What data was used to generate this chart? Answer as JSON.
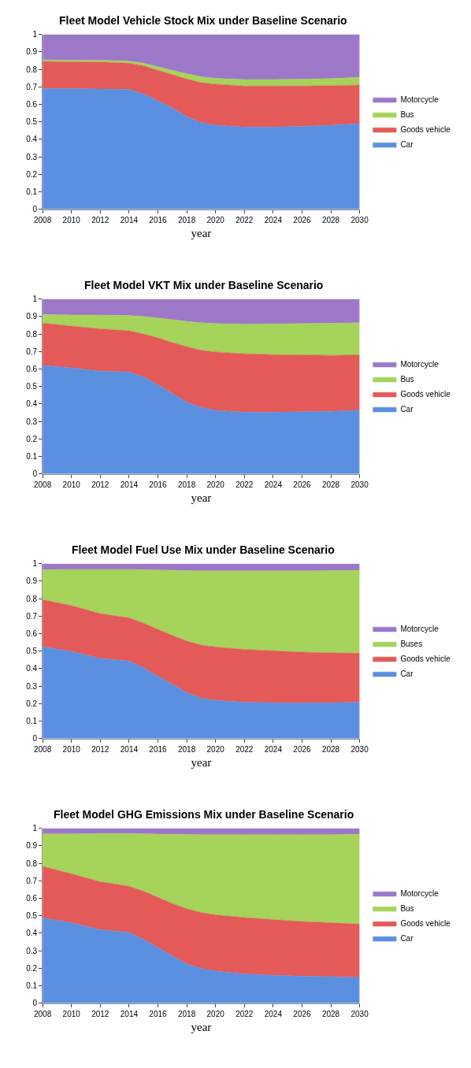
{
  "chart_data": [
    {
      "type": "area",
      "stacked": true,
      "title": "Fleet Model Vehicle Stock Mix under Baseline Scenario",
      "xlabel": "year",
      "x": [
        2008,
        2010,
        2012,
        2014,
        2015,
        2016,
        2017,
        2018,
        2019,
        2020,
        2022,
        2024,
        2026,
        2028,
        2030
      ],
      "xlim": [
        2008,
        2030
      ],
      "xticks": [
        2008,
        2010,
        2012,
        2014,
        2016,
        2018,
        2020,
        2022,
        2024,
        2026,
        2028,
        2030
      ],
      "ylim": [
        0,
        1
      ],
      "yticks": [
        0,
        0.1,
        0.2,
        0.3,
        0.4,
        0.5,
        0.6,
        0.7,
        0.8,
        0.9,
        1
      ],
      "legend": "right",
      "series": [
        {
          "name": "Car",
          "color": "#5b8fe0",
          "values": [
            0.69,
            0.69,
            0.688,
            0.685,
            0.66,
            0.62,
            0.58,
            0.53,
            0.495,
            0.48,
            0.47,
            0.47,
            0.474,
            0.48,
            0.49
          ]
        },
        {
          "name": "Goods vehicle",
          "color": "#e35a58",
          "values": [
            0.155,
            0.153,
            0.154,
            0.15,
            0.16,
            0.175,
            0.19,
            0.215,
            0.23,
            0.235,
            0.235,
            0.235,
            0.231,
            0.227,
            0.22
          ]
        },
        {
          "name": "Bus",
          "color": "#a6d35a",
          "values": [
            0.01,
            0.009,
            0.01,
            0.013,
            0.015,
            0.02,
            0.025,
            0.03,
            0.033,
            0.033,
            0.037,
            0.037,
            0.039,
            0.04,
            0.045
          ]
        },
        {
          "name": "Motorcycle",
          "color": "#9d78c8",
          "values": [
            0.145,
            0.148,
            0.148,
            0.152,
            0.165,
            0.185,
            0.205,
            0.225,
            0.242,
            0.252,
            0.258,
            0.258,
            0.256,
            0.253,
            0.245
          ]
        }
      ]
    },
    {
      "type": "area",
      "stacked": true,
      "title": "Fleet Model VKT Mix under Baseline Scenario",
      "xlabel": "year",
      "x": [
        2008,
        2010,
        2012,
        2014,
        2015,
        2016,
        2017,
        2018,
        2019,
        2020,
        2022,
        2024,
        2026,
        2028,
        2030
      ],
      "xlim": [
        2008,
        2030
      ],
      "xticks": [
        2008,
        2010,
        2012,
        2014,
        2016,
        2018,
        2020,
        2022,
        2024,
        2026,
        2028,
        2030
      ],
      "ylim": [
        0,
        1
      ],
      "yticks": [
        0,
        0.1,
        0.2,
        0.3,
        0.4,
        0.5,
        0.6,
        0.7,
        0.8,
        0.9,
        1
      ],
      "legend": "right",
      "series": [
        {
          "name": "Car",
          "color": "#5b8fe0",
          "values": [
            0.62,
            0.607,
            0.587,
            0.583,
            0.555,
            0.51,
            0.46,
            0.41,
            0.38,
            0.363,
            0.353,
            0.353,
            0.355,
            0.358,
            0.365
          ]
        },
        {
          "name": "Goods vehicle",
          "color": "#e35a58",
          "values": [
            0.242,
            0.238,
            0.243,
            0.235,
            0.245,
            0.268,
            0.292,
            0.317,
            0.327,
            0.334,
            0.334,
            0.329,
            0.325,
            0.32,
            0.315
          ]
        },
        {
          "name": "Bus",
          "color": "#a6d35a",
          "values": [
            0.05,
            0.063,
            0.078,
            0.088,
            0.1,
            0.114,
            0.13,
            0.145,
            0.157,
            0.163,
            0.17,
            0.176,
            0.18,
            0.183,
            0.184
          ]
        },
        {
          "name": "Motorcycle",
          "color": "#9d78c8",
          "values": [
            0.088,
            0.092,
            0.092,
            0.094,
            0.1,
            0.108,
            0.118,
            0.128,
            0.136,
            0.14,
            0.143,
            0.142,
            0.14,
            0.139,
            0.136
          ]
        }
      ]
    },
    {
      "type": "area",
      "stacked": true,
      "title": "Fleet Model Fuel Use Mix under Baseline Scenario",
      "xlabel": "year",
      "x": [
        2008,
        2010,
        2012,
        2014,
        2015,
        2016,
        2017,
        2018,
        2019,
        2020,
        2022,
        2024,
        2026,
        2028,
        2030
      ],
      "xlim": [
        2008,
        2030
      ],
      "xticks": [
        2008,
        2010,
        2012,
        2014,
        2016,
        2018,
        2020,
        2022,
        2024,
        2026,
        2028,
        2030
      ],
      "ylim": [
        0,
        1
      ],
      "yticks": [
        0,
        0.1,
        0.2,
        0.3,
        0.4,
        0.5,
        0.6,
        0.7,
        0.8,
        0.9,
        1
      ],
      "legend": "right",
      "series": [
        {
          "name": "Car",
          "color": "#5b8fe0",
          "values": [
            0.525,
            0.498,
            0.458,
            0.443,
            0.405,
            0.355,
            0.31,
            0.263,
            0.232,
            0.218,
            0.208,
            0.205,
            0.204,
            0.205,
            0.208
          ]
        },
        {
          "name": "Goods vehicle",
          "color": "#e35a58",
          "values": [
            0.27,
            0.262,
            0.257,
            0.247,
            0.255,
            0.27,
            0.28,
            0.295,
            0.303,
            0.305,
            0.302,
            0.297,
            0.29,
            0.285,
            0.28
          ]
        },
        {
          "name": "Buses",
          "color": "#a6d35a",
          "values": [
            0.171,
            0.207,
            0.252,
            0.277,
            0.306,
            0.339,
            0.372,
            0.402,
            0.424,
            0.436,
            0.449,
            0.457,
            0.465,
            0.47,
            0.474
          ]
        },
        {
          "name": "Motorcycle",
          "color": "#9d78c8",
          "values": [
            0.034,
            0.033,
            0.033,
            0.033,
            0.034,
            0.036,
            0.038,
            0.04,
            0.041,
            0.041,
            0.041,
            0.041,
            0.041,
            0.04,
            0.038
          ]
        }
      ]
    },
    {
      "type": "area",
      "stacked": true,
      "title": "Fleet Model GHG Emissions Mix under Baseline Scenario",
      "xlabel": "year",
      "x": [
        2008,
        2010,
        2012,
        2014,
        2015,
        2016,
        2017,
        2018,
        2019,
        2020,
        2022,
        2024,
        2026,
        2028,
        2030
      ],
      "xlim": [
        2008,
        2030
      ],
      "xticks": [
        2008,
        2010,
        2012,
        2014,
        2016,
        2018,
        2020,
        2022,
        2024,
        2026,
        2028,
        2030
      ],
      "ylim": [
        0,
        1
      ],
      "yticks": [
        0,
        0.1,
        0.2,
        0.3,
        0.4,
        0.5,
        0.6,
        0.7,
        0.8,
        0.9,
        1
      ],
      "legend": "right",
      "series": [
        {
          "name": "Car",
          "color": "#5b8fe0",
          "values": [
            0.488,
            0.46,
            0.42,
            0.405,
            0.365,
            0.318,
            0.27,
            0.225,
            0.198,
            0.183,
            0.167,
            0.16,
            0.155,
            0.152,
            0.147
          ]
        },
        {
          "name": "Goods vehicle",
          "color": "#e35a58",
          "values": [
            0.294,
            0.28,
            0.275,
            0.263,
            0.275,
            0.287,
            0.3,
            0.315,
            0.32,
            0.322,
            0.323,
            0.318,
            0.312,
            0.308,
            0.305
          ]
        },
        {
          "name": "Bus",
          "color": "#a6d35a",
          "values": [
            0.186,
            0.228,
            0.275,
            0.302,
            0.329,
            0.362,
            0.396,
            0.425,
            0.445,
            0.458,
            0.473,
            0.485,
            0.496,
            0.503,
            0.515
          ]
        },
        {
          "name": "Motorcycle",
          "color": "#9d78c8",
          "values": [
            0.032,
            0.032,
            0.03,
            0.03,
            0.031,
            0.033,
            0.034,
            0.035,
            0.037,
            0.037,
            0.037,
            0.037,
            0.037,
            0.037,
            0.033
          ]
        }
      ]
    }
  ]
}
